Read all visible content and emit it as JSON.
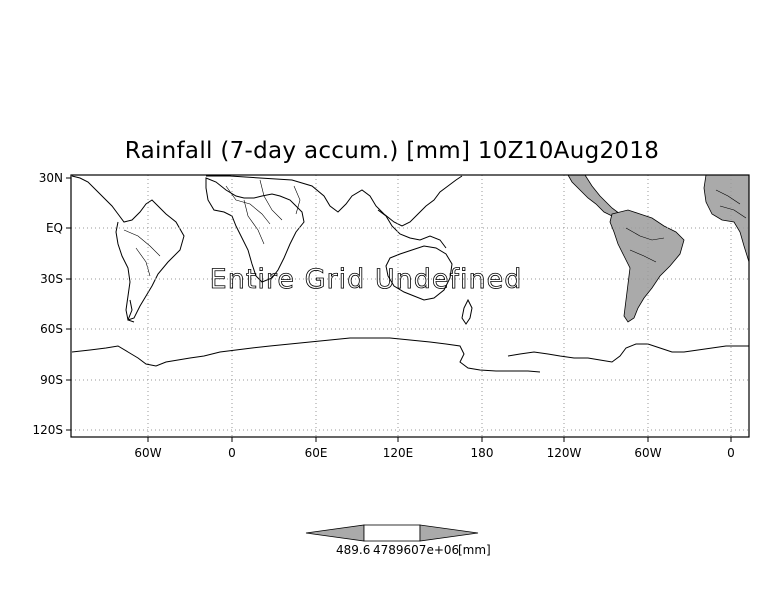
{
  "title": "Rainfall (7-day accum.) [mm] 10Z10Aug2018",
  "overlay_message": "Entire Grid Undefined",
  "latitude_ticks": [
    "30N",
    "EQ",
    "30S",
    "60S",
    "90S",
    "120S"
  ],
  "longitude_ticks": [
    "60W",
    "0",
    "60E",
    "120E",
    "180",
    "120W",
    "60W",
    "0"
  ],
  "colorbar": {
    "left_label": "489.6",
    "right_label": "4789607e+06",
    "unit_label": "[mm]",
    "fill_color": "#aaaaaa"
  },
  "colors": {
    "land_shaded": "#aaaaaa",
    "grid": "#999999",
    "coastline": "#000000"
  }
}
